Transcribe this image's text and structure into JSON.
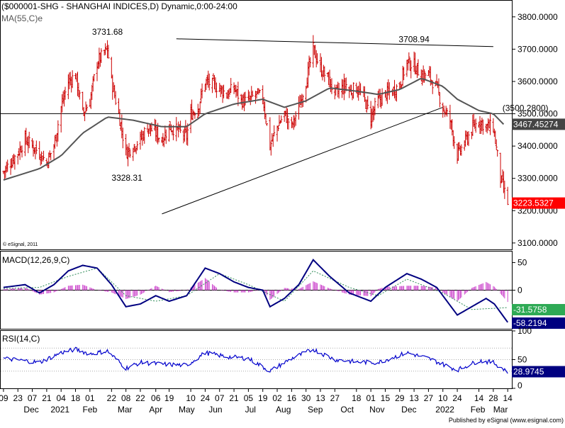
{
  "header": {
    "symbol_line": "($000001-SHG - SHANGHAI INDICES,D) Dynamic,0:00-24:00",
    "ma_label": "MA(55,C)e",
    "watermark": "© eSignal, 2011"
  },
  "colors": {
    "candle": "#cc0000",
    "ma_line": "#555555",
    "macd_line": "#000080",
    "signal_line": "#2e8b57",
    "histogram": "#cc44cc",
    "rsi_line": "#0000cc",
    "last_price_tag": "#ff0000",
    "ma_tag": "#444444",
    "signal_tag": "#2eaa55",
    "macd_tag": "#000080"
  },
  "footer": {
    "published": "Published by eSignal (www.esignal.com)"
  },
  "chart_data": [
    {
      "type": "candlestick",
      "panel": "price",
      "y_ticks": [
        "3800.0000",
        "3700.0000",
        "3600.0000",
        "3500.0000",
        "3400.0000",
        "3300.0000",
        "3200.0000",
        "3100.0000"
      ],
      "ylim": [
        3080,
        3850
      ],
      "close_points": [
        [
          "2020-11-09",
          3320
        ],
        [
          "2020-11-16",
          3350
        ],
        [
          "2020-11-23",
          3380
        ],
        [
          "2020-11-30",
          3420
        ],
        [
          "2020-12-07",
          3400
        ],
        [
          "2020-12-14",
          3380
        ],
        [
          "2020-12-21",
          3350
        ],
        [
          "2020-12-28",
          3400
        ],
        [
          "2021-01-04",
          3520
        ],
        [
          "2021-01-11",
          3600
        ],
        [
          "2021-01-18",
          3620
        ],
        [
          "2021-01-25",
          3500
        ],
        [
          "2021-02-01",
          3540
        ],
        [
          "2021-02-08",
          3660
        ],
        [
          "2021-02-18",
          3700
        ],
        [
          "2021-02-22",
          3600
        ],
        [
          "2021-03-01",
          3500
        ],
        [
          "2021-03-08",
          3380
        ],
        [
          "2021-03-15",
          3400
        ],
        [
          "2021-03-22",
          3420
        ],
        [
          "2021-03-29",
          3460
        ],
        [
          "2021-04-06",
          3440
        ],
        [
          "2021-04-12",
          3420
        ],
        [
          "2021-04-19",
          3460
        ],
        [
          "2021-04-26",
          3450
        ],
        [
          "2021-05-06",
          3430
        ],
        [
          "2021-05-10",
          3500
        ],
        [
          "2021-05-17",
          3520
        ],
        [
          "2021-05-24",
          3600
        ],
        [
          "2021-05-31",
          3590
        ],
        [
          "2021-06-07",
          3580
        ],
        [
          "2021-06-14",
          3560
        ],
        [
          "2021-06-21",
          3580
        ],
        [
          "2021-06-28",
          3540
        ],
        [
          "2021-07-05",
          3540
        ],
        [
          "2021-07-12",
          3560
        ],
        [
          "2021-07-19",
          3550
        ],
        [
          "2021-07-26",
          3400
        ],
        [
          "2021-08-02",
          3460
        ],
        [
          "2021-08-09",
          3500
        ],
        [
          "2021-08-16",
          3460
        ],
        [
          "2021-08-23",
          3520
        ],
        [
          "2021-08-30",
          3600
        ],
        [
          "2021-09-06",
          3700
        ],
        [
          "2021-09-13",
          3640
        ],
        [
          "2021-09-22",
          3600
        ],
        [
          "2021-09-27",
          3560
        ],
        [
          "2021-10-08",
          3590
        ],
        [
          "2021-10-11",
          3570
        ],
        [
          "2021-10-18",
          3580
        ],
        [
          "2021-10-25",
          3550
        ],
        [
          "2021-11-01",
          3490
        ],
        [
          "2021-11-08",
          3540
        ],
        [
          "2021-11-15",
          3560
        ],
        [
          "2021-11-22",
          3570
        ],
        [
          "2021-11-29",
          3590
        ],
        [
          "2021-12-06",
          3660
        ],
        [
          "2021-12-13",
          3650
        ],
        [
          "2021-12-20",
          3620
        ],
        [
          "2021-12-27",
          3620
        ],
        [
          "2022-01-04",
          3580
        ],
        [
          "2022-01-10",
          3520
        ],
        [
          "2022-01-17",
          3480
        ],
        [
          "2022-01-24",
          3370
        ],
        [
          "2022-02-07",
          3450
        ],
        [
          "2022-02-14",
          3480
        ],
        [
          "2022-02-21",
          3460
        ],
        [
          "2022-02-28",
          3460
        ],
        [
          "2022-03-07",
          3300
        ],
        [
          "2022-03-14",
          3223.5327
        ]
      ],
      "ma_points": [
        [
          "2020-11-09",
          3295
        ],
        [
          "2020-12-14",
          3330
        ],
        [
          "2021-01-04",
          3370
        ],
        [
          "2021-01-25",
          3440
        ],
        [
          "2021-02-18",
          3490
        ],
        [
          "2021-03-15",
          3480
        ],
        [
          "2021-04-12",
          3460
        ],
        [
          "2021-05-06",
          3460
        ],
        [
          "2021-05-24",
          3500
        ],
        [
          "2021-06-21",
          3530
        ],
        [
          "2021-07-19",
          3545
        ],
        [
          "2021-08-09",
          3520
        ],
        [
          "2021-08-30",
          3540
        ],
        [
          "2021-09-22",
          3580
        ],
        [
          "2021-10-18",
          3570
        ],
        [
          "2021-11-08",
          3560
        ],
        [
          "2021-11-29",
          3575
        ],
        [
          "2021-12-20",
          3610
        ],
        [
          "2022-01-10",
          3585
        ],
        [
          "2022-01-24",
          3545
        ],
        [
          "2022-02-14",
          3510
        ],
        [
          "2022-02-28",
          3500
        ],
        [
          "2022-03-10",
          3467.45274
        ]
      ],
      "annotations": [
        {
          "text": "3731.68",
          "date": "2021-02-18",
          "value": 3731.68,
          "anchor": "above"
        },
        {
          "text": "3328.31",
          "date": "2021-03-09",
          "value": 3328.31,
          "anchor": "below"
        },
        {
          "text": "3708.94",
          "date": "2021-12-13",
          "value": 3708.94,
          "anchor": "above"
        },
        {
          "text": "(3500.2800)",
          "date": "2022-03-02",
          "value": 3500.28,
          "anchor": "above-left"
        }
      ],
      "horizontal_lines": [
        {
          "value": 3500.28
        }
      ],
      "trendlines": [
        {
          "from": [
            "2021-04-26",
            3732
          ],
          "to": [
            "2022-02-28",
            3708
          ]
        },
        {
          "from": [
            "2021-04-12",
            3190
          ],
          "to": [
            "2022-01-10",
            3520
          ]
        }
      ],
      "last_price": {
        "text": "3223.5327",
        "value": 3223.5327
      },
      "ma_value": {
        "text": "3467.45274",
        "value": 3467.45274
      }
    },
    {
      "type": "macd",
      "panel": "macd",
      "title": "MACD(12,26,9,C)",
      "y_ticks": [
        "50",
        "0"
      ],
      "ylim": [
        -70,
        70
      ],
      "macd_points": [
        [
          "2020-11-09",
          5
        ],
        [
          "2020-11-30",
          10
        ],
        [
          "2020-12-14",
          -5
        ],
        [
          "2020-12-28",
          10
        ],
        [
          "2021-01-11",
          35
        ],
        [
          "2021-01-25",
          45
        ],
        [
          "2021-02-08",
          40
        ],
        [
          "2021-02-22",
          10
        ],
        [
          "2021-03-08",
          -30
        ],
        [
          "2021-03-22",
          -25
        ],
        [
          "2021-04-06",
          -10
        ],
        [
          "2021-04-19",
          -20
        ],
        [
          "2021-05-06",
          -10
        ],
        [
          "2021-05-24",
          40
        ],
        [
          "2021-06-07",
          30
        ],
        [
          "2021-06-21",
          15
        ],
        [
          "2021-07-05",
          5
        ],
        [
          "2021-07-19",
          0
        ],
        [
          "2021-07-26",
          -30
        ],
        [
          "2021-08-09",
          -15
        ],
        [
          "2021-08-23",
          10
        ],
        [
          "2021-09-06",
          55
        ],
        [
          "2021-09-22",
          25
        ],
        [
          "2021-10-11",
          -5
        ],
        [
          "2021-11-01",
          -20
        ],
        [
          "2021-11-15",
          5
        ],
        [
          "2021-12-06",
          30
        ],
        [
          "2021-12-20",
          20
        ],
        [
          "2022-01-04",
          5
        ],
        [
          "2022-01-24",
          -45
        ],
        [
          "2022-02-07",
          -30
        ],
        [
          "2022-02-21",
          -15
        ],
        [
          "2022-03-01",
          -25
        ],
        [
          "2022-03-14",
          -58.2194
        ]
      ],
      "signal_points": [
        [
          "2020-11-09",
          3
        ],
        [
          "2020-12-14",
          5
        ],
        [
          "2021-01-11",
          25
        ],
        [
          "2021-02-08",
          40
        ],
        [
          "2021-03-08",
          -10
        ],
        [
          "2021-04-06",
          -20
        ],
        [
          "2021-05-06",
          -10
        ],
        [
          "2021-06-07",
          30
        ],
        [
          "2021-07-05",
          10
        ],
        [
          "2021-08-09",
          -20
        ],
        [
          "2021-09-06",
          35
        ],
        [
          "2021-10-11",
          5
        ],
        [
          "2021-11-08",
          -10
        ],
        [
          "2021-12-06",
          20
        ],
        [
          "2022-01-10",
          -5
        ],
        [
          "2022-02-07",
          -35
        ],
        [
          "2022-03-14",
          -31.5758
        ]
      ],
      "signal_tag": "-31.5758",
      "macd_tag": "-58.2194"
    },
    {
      "type": "line",
      "panel": "rsi",
      "title": "RSI(14,C)",
      "y_ticks": [
        "100",
        "50",
        "0"
      ],
      "ylim": [
        0,
        100
      ],
      "reference_levels": [
        70,
        50,
        30
      ],
      "rsi_points": [
        [
          "2020-11-09",
          52
        ],
        [
          "2020-11-30",
          48
        ],
        [
          "2020-12-14",
          45
        ],
        [
          "2021-01-04",
          62
        ],
        [
          "2021-01-18",
          68
        ],
        [
          "2021-02-01",
          60
        ],
        [
          "2021-02-18",
          65
        ],
        [
          "2021-03-08",
          35
        ],
        [
          "2021-03-22",
          45
        ],
        [
          "2021-04-12",
          42
        ],
        [
          "2021-05-06",
          40
        ],
        [
          "2021-05-24",
          62
        ],
        [
          "2021-06-14",
          55
        ],
        [
          "2021-07-05",
          52
        ],
        [
          "2021-07-26",
          30
        ],
        [
          "2021-08-16",
          52
        ],
        [
          "2021-09-06",
          68
        ],
        [
          "2021-09-27",
          50
        ],
        [
          "2021-10-18",
          46
        ],
        [
          "2021-11-08",
          45
        ],
        [
          "2021-12-06",
          62
        ],
        [
          "2021-12-27",
          52
        ],
        [
          "2022-01-24",
          32
        ],
        [
          "2022-02-14",
          48
        ],
        [
          "2022-02-28",
          45
        ],
        [
          "2022-03-14",
          28.9745
        ]
      ],
      "rsi_tag": "28.9745"
    }
  ],
  "time_axis": {
    "day_ticks": [
      {
        "label": "09",
        "date": "2020-11-09"
      },
      {
        "label": "23",
        "date": "2020-11-23"
      },
      {
        "label": "07",
        "date": "2020-12-07"
      },
      {
        "label": "21",
        "date": "2020-12-21"
      },
      {
        "label": "04",
        "date": "2021-01-04"
      },
      {
        "label": "18",
        "date": "2021-01-18"
      },
      {
        "label": "01",
        "date": "2021-02-01"
      },
      {
        "label": "22",
        "date": "2021-02-22"
      },
      {
        "label": "08",
        "date": "2021-03-08"
      },
      {
        "label": "22",
        "date": "2021-03-22"
      },
      {
        "label": "06",
        "date": "2021-04-06"
      },
      {
        "label": "19",
        "date": "2021-04-19"
      },
      {
        "label": "10",
        "date": "2021-05-10"
      },
      {
        "label": "24",
        "date": "2021-05-24"
      },
      {
        "label": "07",
        "date": "2021-06-07"
      },
      {
        "label": "21",
        "date": "2021-06-21"
      },
      {
        "label": "05",
        "date": "2021-07-05"
      },
      {
        "label": "19",
        "date": "2021-07-19"
      },
      {
        "label": "02",
        "date": "2021-08-02"
      },
      {
        "label": "16",
        "date": "2021-08-16"
      },
      {
        "label": "30",
        "date": "2021-08-30"
      },
      {
        "label": "13",
        "date": "2021-09-13"
      },
      {
        "label": "27",
        "date": "2021-09-27"
      },
      {
        "label": "18",
        "date": "2021-10-18"
      },
      {
        "label": "01",
        "date": "2021-11-01"
      },
      {
        "label": "15",
        "date": "2021-11-15"
      },
      {
        "label": "29",
        "date": "2021-11-29"
      },
      {
        "label": "13",
        "date": "2021-12-13"
      },
      {
        "label": "27",
        "date": "2021-12-27"
      },
      {
        "label": "10",
        "date": "2022-01-10"
      },
      {
        "label": "24",
        "date": "2022-01-24"
      },
      {
        "label": "14",
        "date": "2022-02-14"
      },
      {
        "label": "28",
        "date": "2022-02-28"
      },
      {
        "label": "14",
        "date": "2022-03-14"
      }
    ],
    "month_ticks": [
      {
        "label": "Dec",
        "date": "2020-12-06"
      },
      {
        "label": "2021",
        "date": "2021-01-03"
      },
      {
        "label": "Feb",
        "date": "2021-02-01"
      },
      {
        "label": "Mar",
        "date": "2021-03-07"
      },
      {
        "label": "Apr",
        "date": "2021-04-06"
      },
      {
        "label": "May",
        "date": "2021-05-06"
      },
      {
        "label": "Jun",
        "date": "2021-06-03"
      },
      {
        "label": "Jul",
        "date": "2021-07-07"
      },
      {
        "label": "Aug",
        "date": "2021-08-08"
      },
      {
        "label": "Sep",
        "date": "2021-09-08"
      },
      {
        "label": "Oct",
        "date": "2021-10-09"
      },
      {
        "label": "Nov",
        "date": "2021-11-07"
      },
      {
        "label": "Dec",
        "date": "2021-12-08"
      },
      {
        "label": "2022",
        "date": "2022-01-12"
      },
      {
        "label": "Feb",
        "date": "2022-02-13"
      },
      {
        "label": "Mar",
        "date": "2022-03-07"
      }
    ]
  }
}
